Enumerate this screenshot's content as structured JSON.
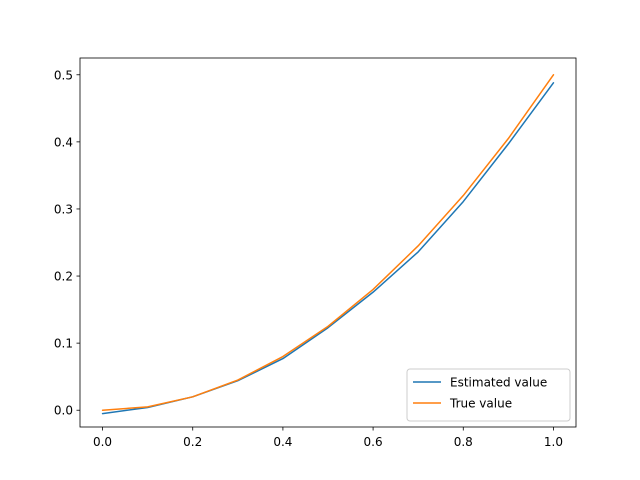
{
  "chart_data": {
    "type": "line",
    "title": "",
    "xlabel": "",
    "ylabel": "",
    "xlim": [
      -0.05,
      1.05
    ],
    "ylim": [
      -0.025,
      0.525
    ],
    "xticks": [
      0.0,
      0.2,
      0.4,
      0.6,
      0.8,
      1.0
    ],
    "xtick_labels": [
      "0.0",
      "0.2",
      "0.4",
      "0.6",
      "0.8",
      "1.0"
    ],
    "yticks": [
      0.0,
      0.1,
      0.2,
      0.3,
      0.4,
      0.5
    ],
    "ytick_labels": [
      "0.0",
      "0.1",
      "0.2",
      "0.3",
      "0.4",
      "0.5"
    ],
    "grid": false,
    "legend_position": "lower-right",
    "series": [
      {
        "name": "Estimated value",
        "color": "#1f77b4",
        "x": [
          0.0,
          0.1,
          0.2,
          0.3,
          0.4,
          0.5,
          0.6,
          0.7,
          0.8,
          0.9,
          1.0
        ],
        "y": [
          -0.005,
          0.004,
          0.02,
          0.044,
          0.077,
          0.123,
          0.176,
          0.236,
          0.311,
          0.397,
          0.488
        ]
      },
      {
        "name": "True value",
        "color": "#ff7f0e",
        "x": [
          0.0,
          0.1,
          0.2,
          0.3,
          0.4,
          0.5,
          0.6,
          0.7,
          0.8,
          0.9,
          1.0
        ],
        "y": [
          0.0,
          0.005,
          0.02,
          0.045,
          0.08,
          0.125,
          0.18,
          0.245,
          0.32,
          0.405,
          0.5
        ]
      }
    ]
  }
}
